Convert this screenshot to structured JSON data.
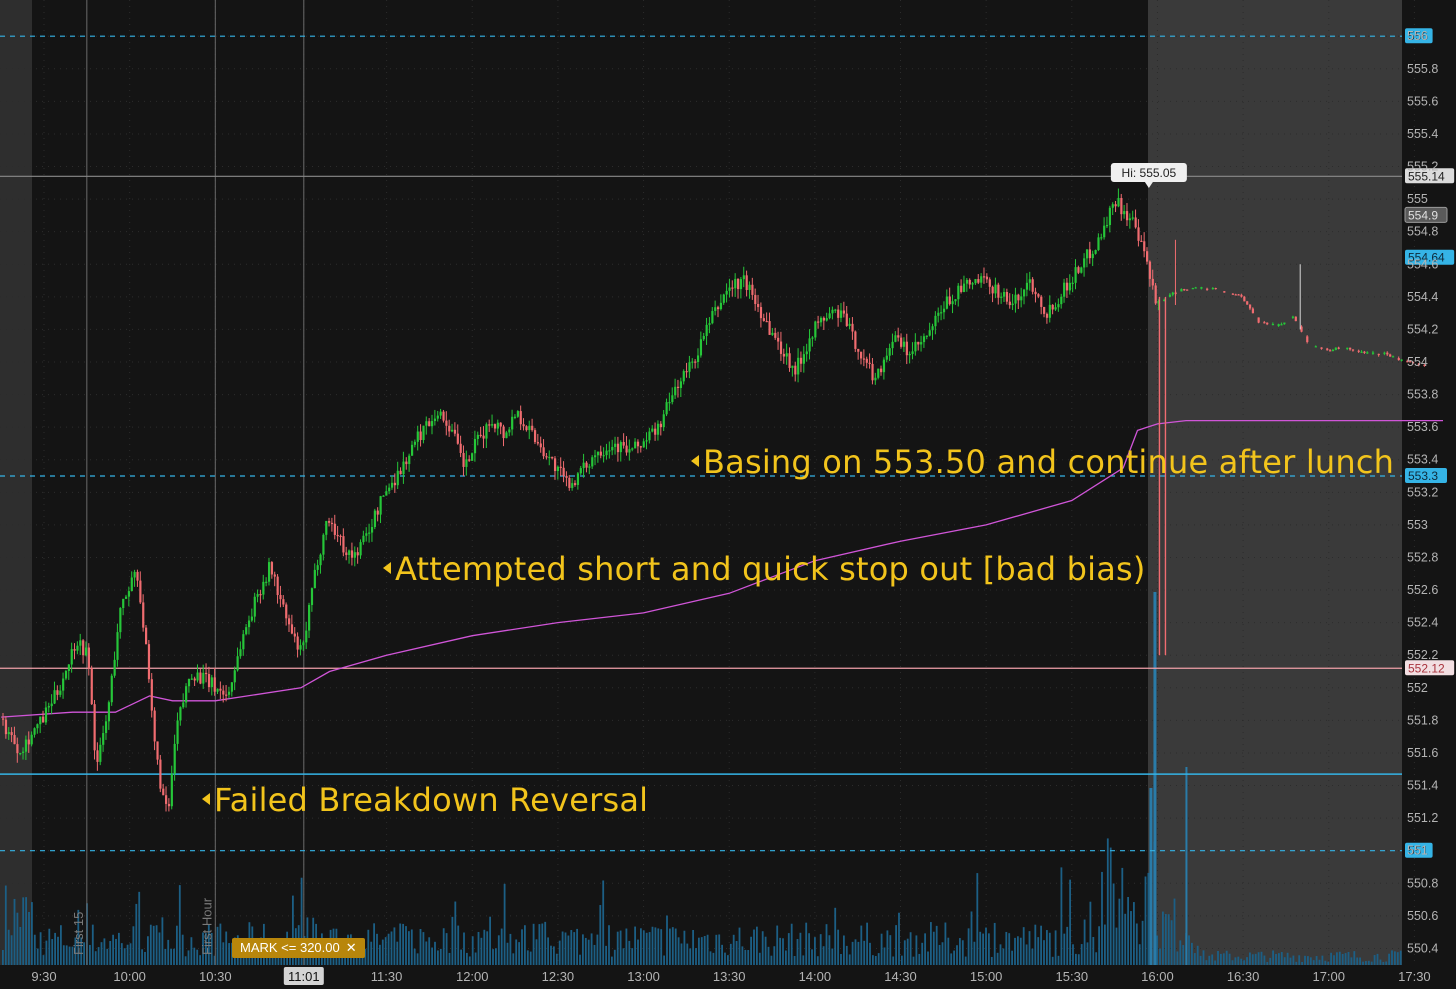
{
  "chart_data": {
    "type": "candlestick",
    "y_ticks": [
      550.4,
      550.6,
      550.8,
      551,
      551.2,
      551.4,
      551.6,
      551.8,
      552,
      552.2,
      552.4,
      552.6,
      552.8,
      553,
      553.2,
      553.4,
      553.6,
      553.8,
      554,
      554.2,
      554.4,
      554.6,
      554.8,
      555,
      555.2,
      555.4,
      555.6,
      555.8,
      556
    ],
    "ylim": [
      550.35,
      556.1
    ],
    "x_ticks": [
      "9:30",
      "10:00",
      "10:30",
      "11:01",
      "11:30",
      "12:00",
      "12:30",
      "13:00",
      "13:30",
      "14:00",
      "14:30",
      "15:00",
      "15:30",
      "16:00",
      "16:30",
      "17:00",
      "17:30"
    ],
    "session_close": "16:00",
    "price_path": [
      [
        "9:15",
        551.82
      ],
      [
        "9:22",
        551.62
      ],
      [
        "9:30",
        551.8
      ],
      [
        "9:36",
        552.0
      ],
      [
        "9:42",
        552.3
      ],
      [
        "9:46",
        552.2
      ],
      [
        "9:49",
        551.5
      ],
      [
        "9:53",
        551.85
      ],
      [
        "9:57",
        552.45
      ],
      [
        "10:00",
        552.6
      ],
      [
        "10:03",
        552.75
      ],
      [
        "10:06",
        552.3
      ],
      [
        "10:09",
        551.7
      ],
      [
        "10:12",
        551.35
      ],
      [
        "10:14",
        551.2
      ],
      [
        "10:17",
        551.75
      ],
      [
        "10:22",
        552.1
      ],
      [
        "10:27",
        552.05
      ],
      [
        "10:31",
        552.0
      ],
      [
        "10:35",
        551.95
      ],
      [
        "10:40",
        552.3
      ],
      [
        "10:46",
        552.6
      ],
      [
        "10:50",
        552.75
      ],
      [
        "10:54",
        552.5
      ],
      [
        "10:58",
        552.3
      ],
      [
        "11:01",
        552.2
      ],
      [
        "11:06",
        552.75
      ],
      [
        "11:10",
        553.05
      ],
      [
        "11:13",
        552.95
      ],
      [
        "11:16",
        552.85
      ],
      [
        "11:19",
        552.8
      ],
      [
        "11:24",
        552.95
      ],
      [
        "11:30",
        553.2
      ],
      [
        "11:36",
        553.35
      ],
      [
        "11:42",
        553.55
      ],
      [
        "11:48",
        553.7
      ],
      [
        "11:53",
        553.6
      ],
      [
        "11:58",
        553.35
      ],
      [
        "12:02",
        553.5
      ],
      [
        "12:08",
        553.65
      ],
      [
        "12:12",
        553.55
      ],
      [
        "12:16",
        553.7
      ],
      [
        "12:22",
        553.55
      ],
      [
        "12:28",
        553.4
      ],
      [
        "12:34",
        553.25
      ],
      [
        "12:38",
        553.3
      ],
      [
        "12:44",
        553.45
      ],
      [
        "12:50",
        553.5
      ],
      [
        "12:56",
        553.45
      ],
      [
        "13:00",
        553.5
      ],
      [
        "13:06",
        553.6
      ],
      [
        "13:12",
        553.85
      ],
      [
        "13:18",
        554.0
      ],
      [
        "13:24",
        554.25
      ],
      [
        "13:30",
        554.45
      ],
      [
        "13:36",
        554.5
      ],
      [
        "13:42",
        554.3
      ],
      [
        "13:48",
        554.1
      ],
      [
        "13:54",
        553.95
      ],
      [
        "14:00",
        554.2
      ],
      [
        "14:06",
        554.3
      ],
      [
        "14:10",
        554.3
      ],
      [
        "14:14",
        554.15
      ],
      [
        "14:18",
        554.0
      ],
      [
        "14:22",
        553.9
      ],
      [
        "14:28",
        554.15
      ],
      [
        "14:34",
        554.05
      ],
      [
        "14:40",
        554.15
      ],
      [
        "14:46",
        554.35
      ],
      [
        "14:52",
        554.45
      ],
      [
        "14:58",
        554.5
      ],
      [
        "15:04",
        554.45
      ],
      [
        "15:10",
        554.35
      ],
      [
        "15:16",
        554.5
      ],
      [
        "15:22",
        554.3
      ],
      [
        "15:28",
        554.45
      ],
      [
        "15:34",
        554.6
      ],
      [
        "15:40",
        554.75
      ],
      [
        "15:46",
        555.0
      ],
      [
        "15:52",
        554.85
      ],
      [
        "15:57",
        554.6
      ],
      [
        "16:00",
        554.35
      ],
      [
        "16:04",
        554.4
      ],
      [
        "16:10",
        554.45
      ],
      [
        "16:20",
        554.45
      ],
      [
        "16:30",
        554.4
      ],
      [
        "16:36",
        554.25
      ],
      [
        "16:42",
        554.22
      ],
      [
        "16:48",
        554.28
      ],
      [
        "16:54",
        554.1
      ],
      [
        "17:00",
        554.08
      ],
      [
        "17:08",
        554.08
      ],
      [
        "17:14",
        554.05
      ],
      [
        "17:20",
        554.05
      ],
      [
        "17:28",
        554.0
      ],
      [
        "17:34",
        553.98
      ]
    ],
    "vwap": [
      [
        "9:15",
        551.82
      ],
      [
        "9:40",
        551.85
      ],
      [
        "9:55",
        551.85
      ],
      [
        "10:07",
        551.95
      ],
      [
        "10:15",
        551.92
      ],
      [
        "10:30",
        551.92
      ],
      [
        "11:00",
        552.0
      ],
      [
        "11:10",
        552.1
      ],
      [
        "11:30",
        552.2
      ],
      [
        "12:00",
        552.32
      ],
      [
        "12:30",
        552.4
      ],
      [
        "13:00",
        552.46
      ],
      [
        "13:30",
        552.58
      ],
      [
        "14:00",
        552.78
      ],
      [
        "14:30",
        552.9
      ],
      [
        "15:00",
        553.0
      ],
      [
        "15:30",
        553.15
      ],
      [
        "15:48",
        553.35
      ],
      [
        "15:53",
        553.58
      ],
      [
        "16:00",
        553.62
      ],
      [
        "16:10",
        553.64
      ],
      [
        "17:40",
        553.64
      ]
    ],
    "horizontal_levels": [
      {
        "label": "556",
        "value": 556,
        "style": "dashed",
        "color": "#35b4e6"
      },
      {
        "label": "553.3",
        "value": 553.3,
        "style": "dashed",
        "color": "#35b4e6"
      },
      {
        "label": "551",
        "value": 551,
        "style": "dashed",
        "color": "#35b4e6"
      },
      {
        "label": "",
        "value": 551.47,
        "style": "solid",
        "color": "#35b4e6"
      },
      {
        "label": "552.12",
        "value": 552.12,
        "style": "solid",
        "color": "#f0a0a8"
      },
      {
        "label": "555.14",
        "value": 555.14,
        "style": "solid",
        "color": "#8a8a8a"
      }
    ],
    "price_badges": [
      {
        "label": "554.9",
        "value": 554.9,
        "color": "#5a5a5a"
      },
      {
        "label": "554.64",
        "value": 554.64,
        "color": "#35b4e6"
      }
    ],
    "high_label": "Hi: 555.05",
    "high_point": [
      "15:57",
      555.05
    ],
    "time_markers": [
      {
        "time": "9:45",
        "label": "First 15"
      },
      {
        "time": "10:30",
        "label": "First Hour"
      },
      {
        "time": "11:01",
        "label": ""
      }
    ],
    "volume_spike": "16:00",
    "annotations": [
      {
        "text": "Failed Breakdown Reversal"
      },
      {
        "text": "Attempted short and quick stop out [bad bias)"
      },
      {
        "text": "Basing on 553.50 and continue after lunch"
      }
    ],
    "colors": {
      "up": "#26c639",
      "down": "#f06c70",
      "vwap": "#d055d8",
      "level": "#35b4e6",
      "afterhours_bg": "#3a3a3a",
      "bg": "#141414"
    }
  },
  "mark_filter": {
    "label": "MARK <= 320.00",
    "close": "✕"
  }
}
